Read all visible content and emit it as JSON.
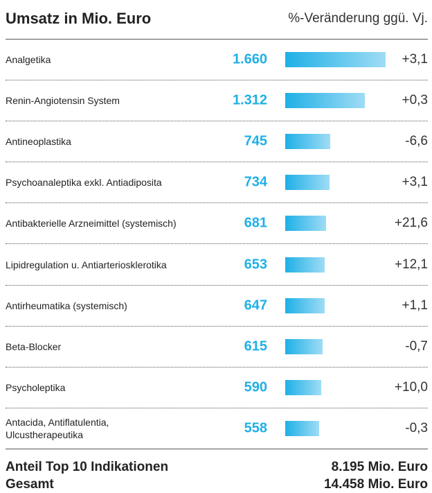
{
  "chart_data": {
    "type": "bar",
    "title": "Umsatz in Mio. Euro",
    "subtitle": "%-Veränderung ggü. Vj.",
    "categories": [
      "Analgetika",
      "Renin-Angiotensin System",
      "Antineoplastika",
      "Psychoanaleptika exkl. Antiadiposita",
      "Antibakterielle Arzneimittel (systemisch)",
      "Lipidregulation u. Antiarteriosklerotika",
      "Antirheumatika (systemisch)",
      "Beta-Blocker",
      "Psycholeptika",
      "Antacida, Antiflatulentia,\nUlcustherapeutika"
    ],
    "values": [
      1660,
      1312,
      745,
      734,
      681,
      653,
      647,
      615,
      590,
      558
    ],
    "value_labels": [
      "1.660",
      "1.312",
      "745",
      "734",
      "681",
      "653",
      "647",
      "615",
      "590",
      "558"
    ],
    "changes": [
      "+3,1",
      "+0,3",
      "-6,6",
      "+3,1",
      "+21,6",
      "+12,1",
      "+1,1",
      "-0,7",
      "+10,0",
      "-0,3"
    ],
    "color": "#1fb0e6",
    "footer": [
      {
        "label": "Anteil Top 10 Indikationen",
        "value": "8.195 Mio. Euro"
      },
      {
        "label": "Gesamt",
        "value": "14.458 Mio. Euro"
      }
    ]
  }
}
